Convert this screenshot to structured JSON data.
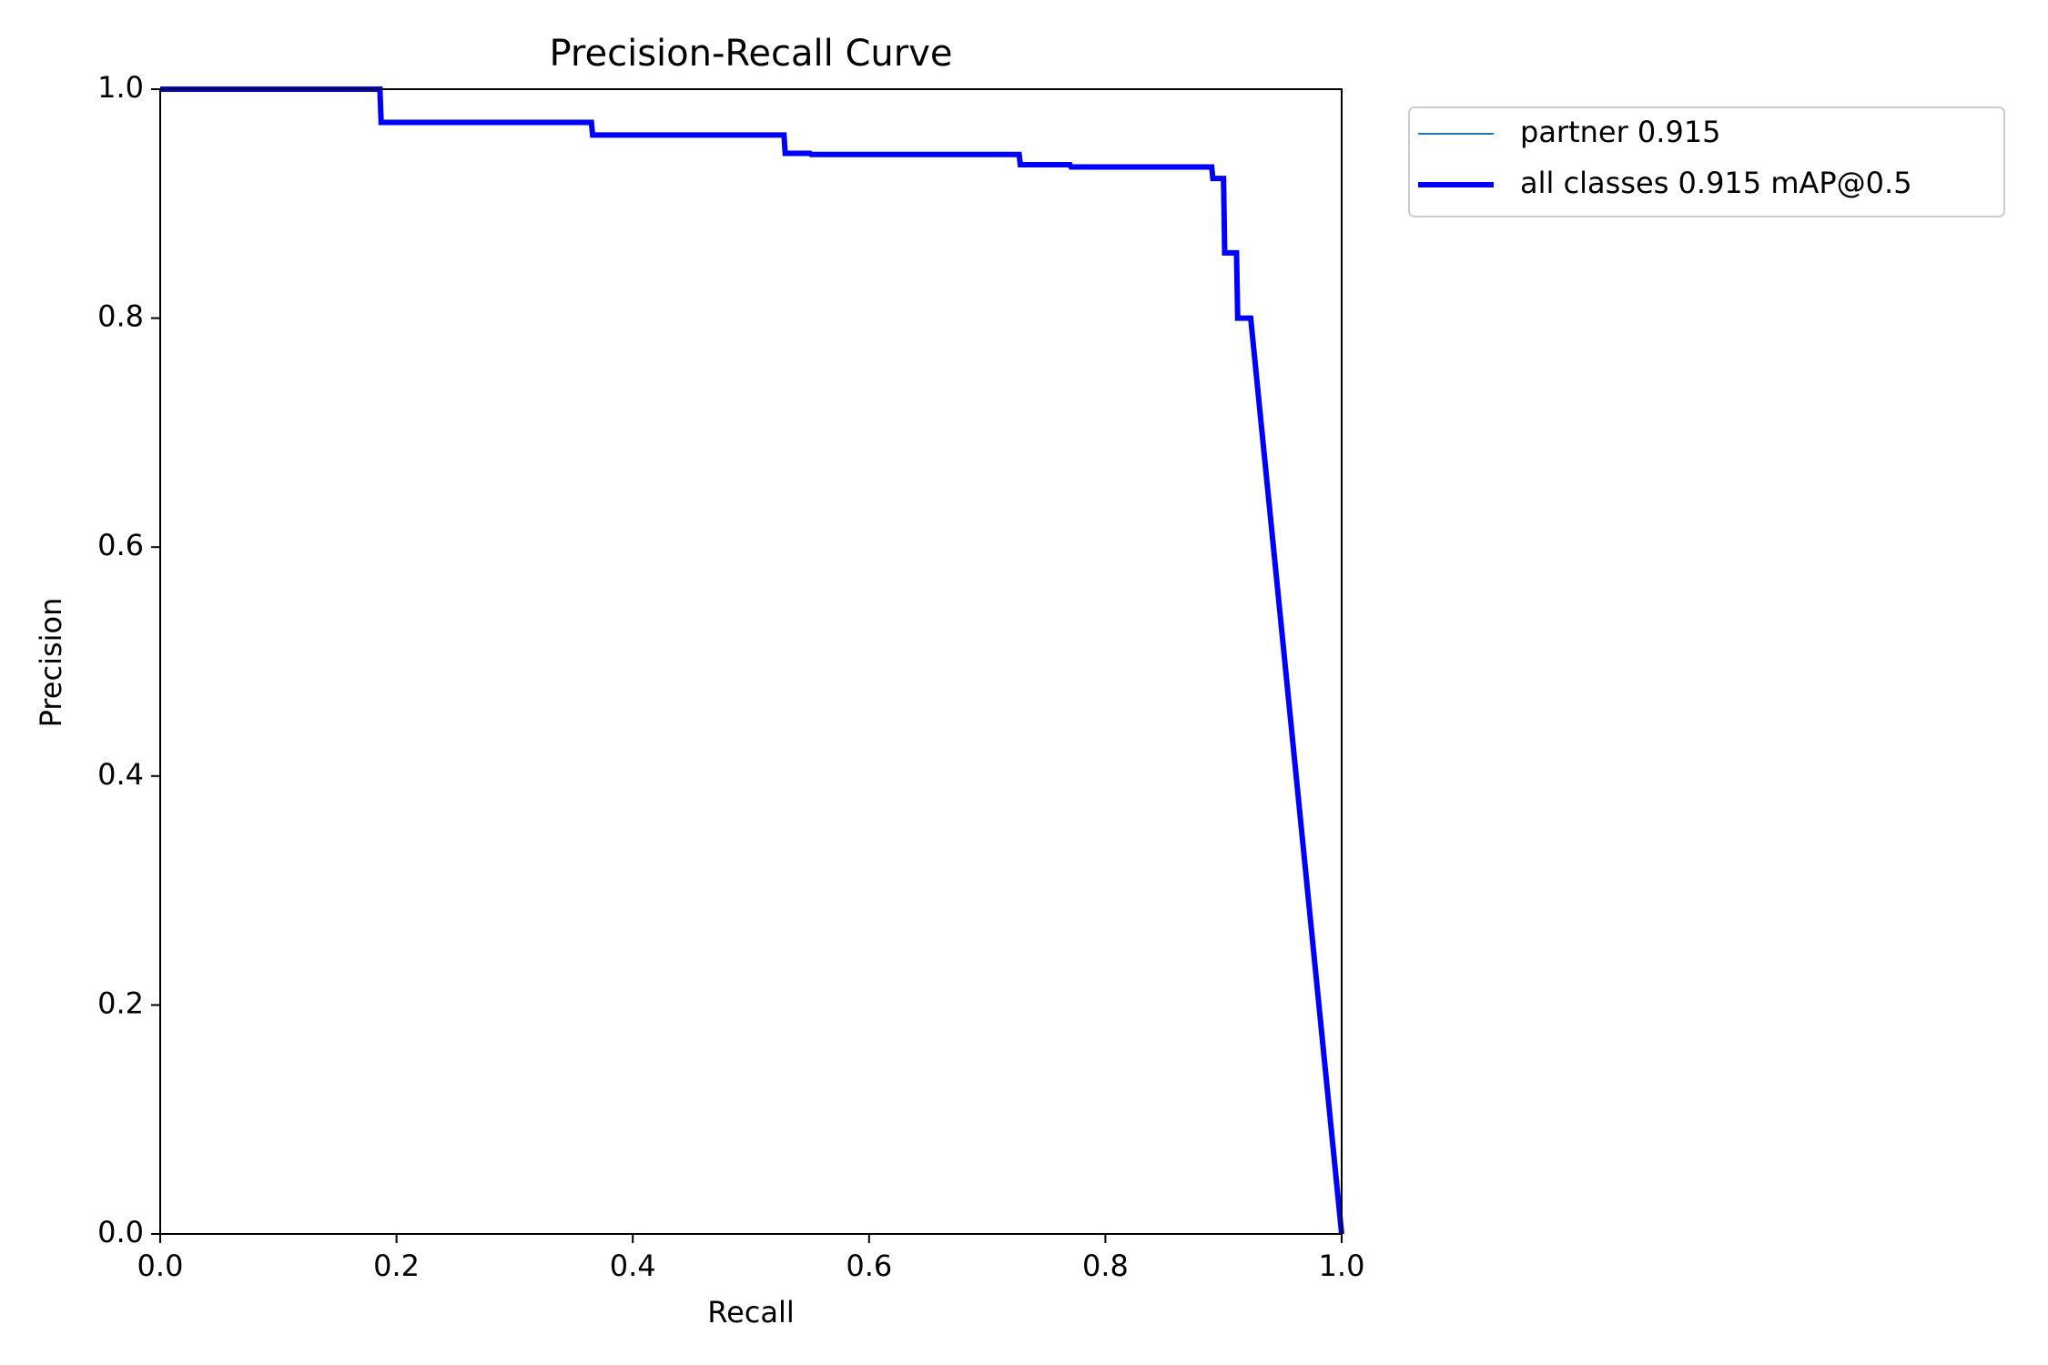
{
  "chart_data": {
    "type": "line",
    "title": "Precision-Recall Curve",
    "x_label": "Recall",
    "y_label": "Precision",
    "x": [
      0,
      0.186,
      0.187,
      0.365,
      0.366,
      0.528,
      0.529,
      0.55,
      0.551,
      0.727,
      0.728,
      0.77,
      0.771,
      0.89,
      0.891,
      0.9,
      0.901,
      0.911,
      0.912,
      0.923,
      1.0
    ],
    "series": [
      {
        "name": "partner 0.915",
        "color": "#1f77b4",
        "values": [
          1.0,
          1.0,
          0.971,
          0.971,
          0.96,
          0.96,
          0.944,
          0.944,
          0.943,
          0.943,
          0.934,
          0.934,
          0.932,
          0.932,
          0.922,
          0.922,
          0.857,
          0.857,
          0.8,
          0.8,
          0.0
        ]
      },
      {
        "name": "all classes 0.915 mAP@0.5",
        "color": "#0000ff",
        "values": [
          1.0,
          1.0,
          0.971,
          0.971,
          0.96,
          0.96,
          0.944,
          0.944,
          0.943,
          0.943,
          0.934,
          0.934,
          0.932,
          0.932,
          0.922,
          0.922,
          0.857,
          0.857,
          0.8,
          0.8,
          0.0
        ]
      }
    ],
    "xlim": [
      0,
      1
    ],
    "ylim": [
      0,
      1
    ],
    "xticks": [
      {
        "value": 0,
        "label": "0.0"
      },
      0.2,
      0.4,
      0.6,
      0.8,
      {
        "value": 1,
        "label": "1.0"
      }
    ],
    "yticks": [
      {
        "value": 0,
        "label": "0.0"
      },
      0.2,
      0.4,
      0.6,
      0.8,
      {
        "value": 1,
        "label": "1.0"
      }
    ],
    "grid": false
  }
}
